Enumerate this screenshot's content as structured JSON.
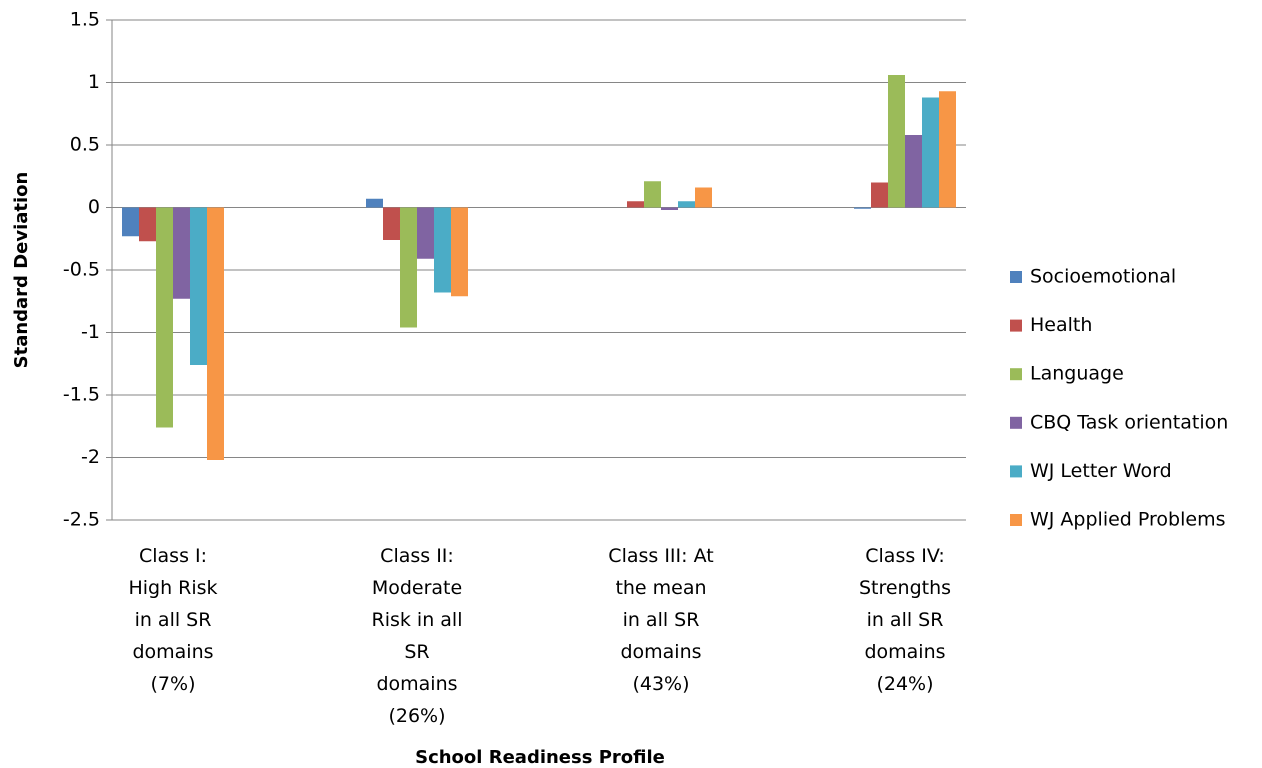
{
  "chart_data": {
    "type": "bar",
    "y_label": "Standard Deviation",
    "x_label": "School Readiness Profile",
    "categories": [
      "Class I: High Risk in all SR domains (7%)",
      "Class II: Moderate Risk in all SR domains (26%)",
      "Class III: At the mean in all SR domains (43%)",
      "Class IV: Strengths in all SR domains (24%)"
    ],
    "series": [
      {
        "name": "Socioemotional",
        "color": "#4f81bd",
        "values": [
          -0.23,
          0.07,
          0.0,
          -0.01
        ]
      },
      {
        "name": "Health",
        "color": "#c0504d",
        "values": [
          -0.27,
          -0.26,
          0.05,
          0.2
        ]
      },
      {
        "name": "Language",
        "color": "#9bbb59",
        "values": [
          -1.76,
          -0.96,
          0.21,
          1.06
        ]
      },
      {
        "name": "CBQ Task orientation",
        "color": "#8064a2",
        "values": [
          -0.73,
          -0.41,
          -0.02,
          0.58
        ]
      },
      {
        "name": "WJ Letter Word",
        "color": "#4bacc6",
        "values": [
          -1.26,
          -0.68,
          0.05,
          0.88
        ]
      },
      {
        "name": "WJ Applied Problems",
        "color": "#f79646",
        "values": [
          -2.02,
          -0.71,
          0.16,
          0.93
        ]
      }
    ],
    "ylim": [
      -2.5,
      1.5
    ],
    "yticks": [
      1.5,
      1,
      0.5,
      0,
      -0.5,
      -1,
      -1.5,
      -2,
      -2.5
    ],
    "grid": true,
    "legend": "right"
  }
}
